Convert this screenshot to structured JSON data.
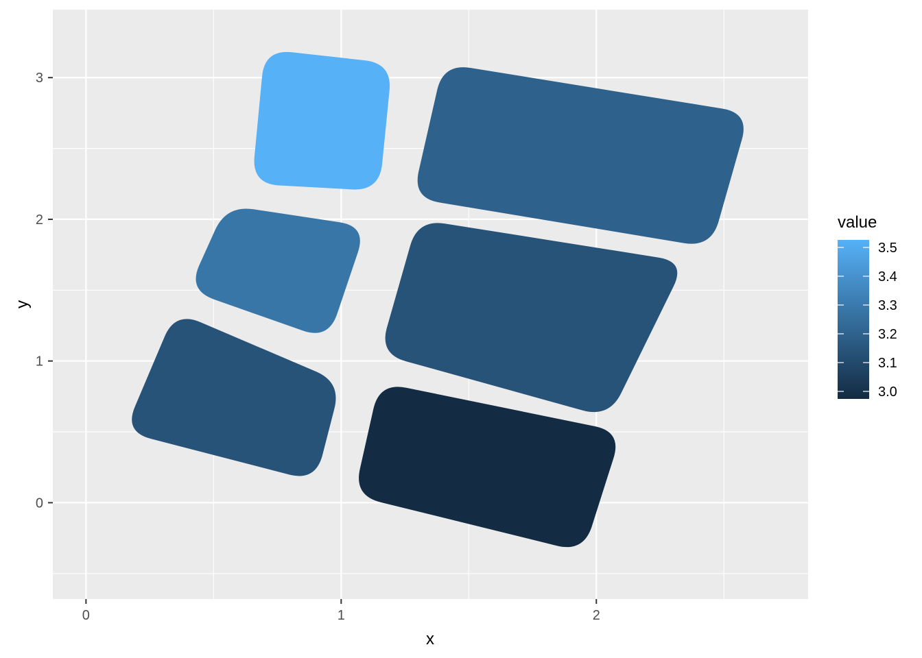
{
  "chart_data": {
    "type": "polygon",
    "xlabel": "x",
    "ylabel": "y",
    "xlim": [
      -0.13,
      2.83
    ],
    "ylim": [
      -0.68,
      3.48
    ],
    "x_ticks": [
      0,
      1,
      2
    ],
    "x_tick_labels": [
      "0",
      "1",
      "2"
    ],
    "y_ticks": [
      0,
      1,
      2,
      3
    ],
    "y_tick_labels": [
      "0",
      "1",
      "2",
      "3"
    ],
    "grid": true,
    "legend": {
      "title": "value",
      "position": "right",
      "min": 3.0,
      "max": 3.5,
      "breaks": [
        3.0,
        3.1,
        3.2,
        3.3,
        3.4,
        3.5
      ],
      "break_labels": [
        "3.0",
        "3.1",
        "3.2",
        "3.3",
        "3.4",
        "3.5"
      ],
      "low_color": "#132B43",
      "high_color": "#56B1F7"
    },
    "shapes": [
      {
        "id": "bottom-left",
        "value": 3.15,
        "vertices": [
          [
            0.15,
            0.5
          ],
          [
            0.9,
            0.15
          ],
          [
            1.0,
            0.85
          ],
          [
            0.35,
            1.35
          ]
        ]
      },
      {
        "id": "bottom-right",
        "value": 3.0,
        "vertices": [
          [
            1.05,
            0.05
          ],
          [
            1.95,
            -0.35
          ],
          [
            2.1,
            0.5
          ],
          [
            1.15,
            0.85
          ]
        ]
      },
      {
        "id": "middle-left",
        "value": 3.28,
        "vertices": [
          [
            0.4,
            1.5
          ],
          [
            0.95,
            1.15
          ],
          [
            1.1,
            1.95
          ],
          [
            0.55,
            2.1
          ]
        ]
      },
      {
        "id": "middle-right",
        "value": 3.15,
        "vertices": [
          [
            1.15,
            1.05
          ],
          [
            2.05,
            0.6
          ],
          [
            2.35,
            1.7
          ],
          [
            1.3,
            2.0
          ]
        ]
      },
      {
        "id": "top-left",
        "value": 3.52,
        "vertices": [
          [
            0.65,
            2.25
          ],
          [
            1.15,
            2.2
          ],
          [
            1.2,
            3.1
          ],
          [
            0.7,
            3.2
          ]
        ]
      },
      {
        "id": "top-right",
        "value": 3.2,
        "vertices": [
          [
            1.28,
            2.15
          ],
          [
            2.45,
            1.8
          ],
          [
            2.6,
            2.75
          ],
          [
            1.4,
            3.1
          ]
        ]
      }
    ]
  }
}
